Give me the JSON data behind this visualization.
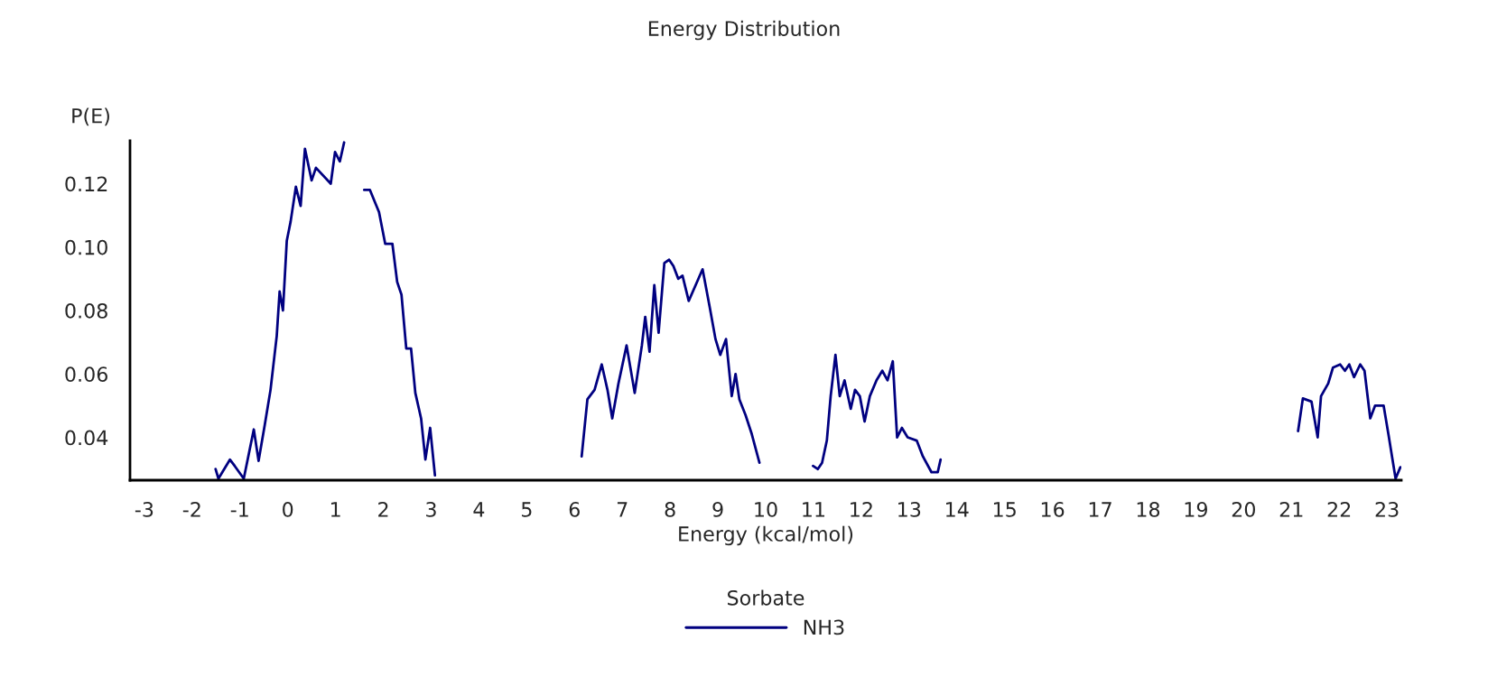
{
  "chart_data": {
    "type": "line",
    "title": "Energy Distribution",
    "xlabel": "Energy (kcal/mol)",
    "ylabel": "P(E)",
    "legend_title": "Sorbate",
    "legend": "bottom",
    "grid": false,
    "marker": "none",
    "line_style": "solid",
    "xlim": [
      -3.3,
      23.3
    ],
    "ylim": [
      0.0265,
      0.1335
    ],
    "xticks": [
      -3,
      -2,
      -1,
      0,
      1,
      2,
      3,
      4,
      5,
      6,
      7,
      8,
      9,
      10,
      11,
      12,
      13,
      14,
      15,
      16,
      17,
      18,
      19,
      20,
      21,
      22,
      23
    ],
    "yticks": [
      {
        "value": 0.04,
        "label": "0.04"
      },
      {
        "value": 0.06,
        "label": "0.06"
      },
      {
        "value": 0.08,
        "label": "0.08"
      },
      {
        "value": 0.1,
        "label": "0.10"
      },
      {
        "value": 0.12,
        "label": "0.12"
      }
    ],
    "series": [
      {
        "name": "NH3",
        "color": "#000080",
        "x": [
          -1.51,
          -1.45,
          -1.21,
          -1.11,
          -0.92,
          -0.71,
          -0.61,
          -0.48,
          -0.36,
          -0.23,
          -0.17,
          -0.1,
          -0.02,
          0.06,
          0.17,
          0.27,
          0.36,
          0.5,
          0.59,
          0.9,
          0.99,
          1.09,
          1.18,
          1.3,
          1.6,
          1.72,
          1.91,
          2.04,
          2.19,
          2.29,
          2.38,
          2.48,
          2.58,
          2.67,
          2.79,
          2.88,
          2.98,
          3.08,
          4.5,
          6.15,
          6.27,
          6.42,
          6.57,
          6.69,
          6.79,
          6.92,
          7.09,
          7.26,
          7.41,
          7.48,
          7.57,
          7.67,
          7.76,
          7.88,
          7.98,
          8.07,
          8.17,
          8.26,
          8.39,
          8.68,
          8.83,
          8.95,
          9.05,
          9.17,
          9.29,
          9.37,
          9.45,
          9.58,
          9.71,
          9.87,
          10.5,
          10.99,
          11.09,
          11.18,
          11.28,
          11.36,
          11.46,
          11.55,
          11.65,
          11.78,
          11.87,
          11.97,
          12.07,
          12.18,
          12.32,
          12.44,
          12.55,
          12.66,
          12.75,
          12.85,
          12.97,
          13.16,
          13.29,
          13.47,
          13.6,
          13.66,
          17.0,
          21.14,
          21.24,
          21.42,
          21.55,
          21.62,
          21.77,
          21.87,
          22.02,
          22.12,
          22.21,
          22.31,
          22.44,
          22.53,
          22.65,
          22.75,
          22.93,
          23.03,
          23.18,
          23.28
        ],
        "values": [
          0.03,
          0.027,
          0.033,
          0.031,
          0.027,
          0.0425,
          0.0326,
          0.044,
          0.055,
          0.072,
          0.086,
          0.08,
          0.102,
          0.108,
          0.119,
          0.113,
          0.131,
          0.121,
          0.125,
          0.12,
          0.13,
          0.127,
          0.133,
          null,
          0.118,
          0.118,
          0.111,
          0.101,
          0.101,
          0.089,
          0.085,
          0.068,
          0.068,
          0.054,
          0.046,
          0.033,
          0.043,
          0.028,
          null,
          0.034,
          0.052,
          0.055,
          0.063,
          0.055,
          0.046,
          0.057,
          0.069,
          0.054,
          0.069,
          0.078,
          0.067,
          0.088,
          0.073,
          0.095,
          0.096,
          0.094,
          0.09,
          0.091,
          0.083,
          0.093,
          0.081,
          0.071,
          0.066,
          0.071,
          0.053,
          0.06,
          0.052,
          0.047,
          0.041,
          0.032,
          null,
          0.031,
          0.03,
          0.032,
          0.039,
          0.053,
          0.066,
          0.053,
          0.058,
          0.049,
          0.055,
          0.053,
          0.045,
          0.053,
          0.058,
          0.061,
          0.058,
          0.064,
          0.04,
          0.043,
          0.04,
          0.039,
          0.034,
          0.029,
          0.029,
          0.033,
          null,
          0.042,
          0.0523,
          0.0513,
          0.04,
          0.053,
          0.057,
          0.062,
          0.063,
          0.061,
          0.063,
          0.059,
          0.063,
          0.061,
          0.046,
          0.05,
          0.05,
          0.041,
          0.027,
          0.0306
        ]
      }
    ]
  }
}
